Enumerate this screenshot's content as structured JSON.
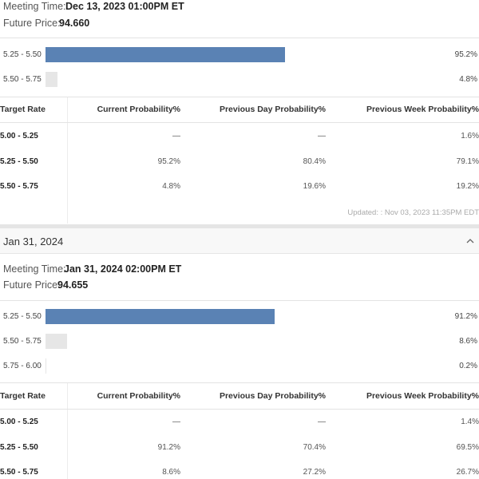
{
  "meeting1": {
    "meeting_label": "Meeting Time:",
    "meeting_value": "Dec 13, 2023 01:00PM ET",
    "price_label": "Future Price:",
    "price_value": "94.660",
    "chart_data": {
      "type": "bar",
      "orientation": "horizontal",
      "categories": [
        "5.25 - 5.50",
        "5.50 - 5.75"
      ],
      "values": [
        95.2,
        4.8
      ],
      "value_labels": [
        "95.2%",
        "4.8%"
      ],
      "colors": [
        "#5a82b4",
        "#e6e6e6"
      ]
    },
    "table": {
      "headers": [
        "Target Rate",
        "Current Probability%",
        "Previous Day Probability%",
        "Previous Week Probability%"
      ],
      "rows": [
        [
          "5.00 - 5.25",
          "—",
          "—",
          "1.6%"
        ],
        [
          "5.25 - 5.50",
          "95.2%",
          "80.4%",
          "79.1%"
        ],
        [
          "5.50 - 5.75",
          "4.8%",
          "19.6%",
          "19.2%"
        ]
      ]
    },
    "updated": "Updated: : Nov 03, 2023 11:35PM EDT"
  },
  "section2_title": "Jan 31, 2024",
  "meeting2": {
    "meeting_label": "Meeting Time:",
    "meeting_value": "Jan 31, 2024 02:00PM ET",
    "price_label": "Future Price:",
    "price_value": "94.655",
    "chart_data": {
      "type": "bar",
      "orientation": "horizontal",
      "categories": [
        "5.25 - 5.50",
        "5.50 - 5.75",
        "5.75 - 6.00"
      ],
      "values": [
        91.2,
        8.6,
        0.2
      ],
      "value_labels": [
        "91.2%",
        "8.6%",
        "0.2%"
      ],
      "colors": [
        "#5a82b4",
        "#e6e6e6",
        "#e6e6e6"
      ]
    },
    "table": {
      "headers": [
        "Target Rate",
        "Current Probability%",
        "Previous Day Probability%",
        "Previous Week Probability%"
      ],
      "rows": [
        [
          "5.00 - 5.25",
          "—",
          "—",
          "1.4%"
        ],
        [
          "5.25 - 5.50",
          "91.2%",
          "70.4%",
          "69.5%"
        ],
        [
          "5.50 - 5.75",
          "8.6%",
          "27.2%",
          "26.7%"
        ]
      ]
    }
  },
  "icons": {
    "collapse": "chevron-up-icon"
  }
}
